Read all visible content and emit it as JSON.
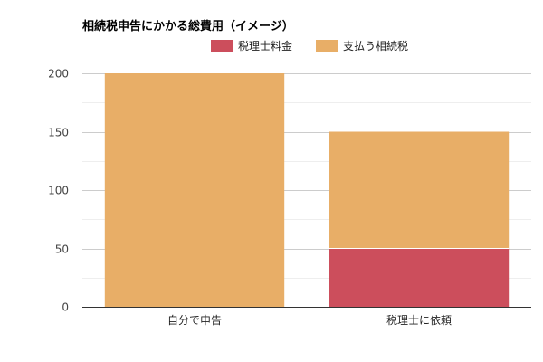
{
  "chart_data": {
    "type": "bar",
    "stacked": true,
    "title": "相続税申告にかかる総費用（イメージ）",
    "categories": [
      "自分で申告",
      "税理士に依頼"
    ],
    "series": [
      {
        "name": "税理士料金",
        "values": [
          0,
          50
        ],
        "color": "#cc4e5c"
      },
      {
        "name": "支払う相続税",
        "values": [
          200,
          100
        ],
        "color": "#e8ae67"
      }
    ],
    "ylim": [
      0,
      200
    ],
    "yticks": [
      0,
      50,
      100,
      150,
      200
    ],
    "xlabel": "",
    "ylabel": "",
    "grid": true,
    "legend_position": "top"
  }
}
